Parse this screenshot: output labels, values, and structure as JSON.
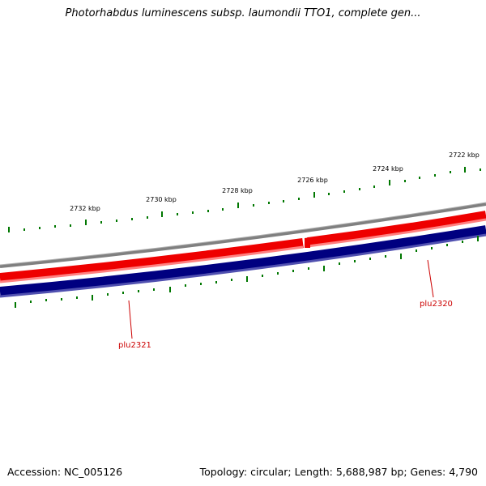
{
  "title": "Photorhabdus luminescens subsp. laumondii TTO1, complete gen...",
  "footer": {
    "accession": "Accession: NC_005126",
    "summary": "Topology: circular; Length: 5,688,987 bp; Genes: 4,790"
  },
  "scale_labels": [
    "2722 kbp",
    "2724 kbp",
    "2726 kbp",
    "2728 kbp",
    "2730 kbp",
    "2732 kbp"
  ],
  "genes": [
    {
      "name": "plu2321",
      "strand": "reverse"
    },
    {
      "name": "plu2320",
      "strand": "reverse"
    }
  ],
  "colors": {
    "forward_track": "#ee0000",
    "forward_track_light": "#ff8080",
    "reverse_track": "#000080",
    "reverse_track_light": "#5050b0",
    "backbone": "#808080",
    "ticks": "#007700",
    "gene_label": "#cc0000"
  }
}
